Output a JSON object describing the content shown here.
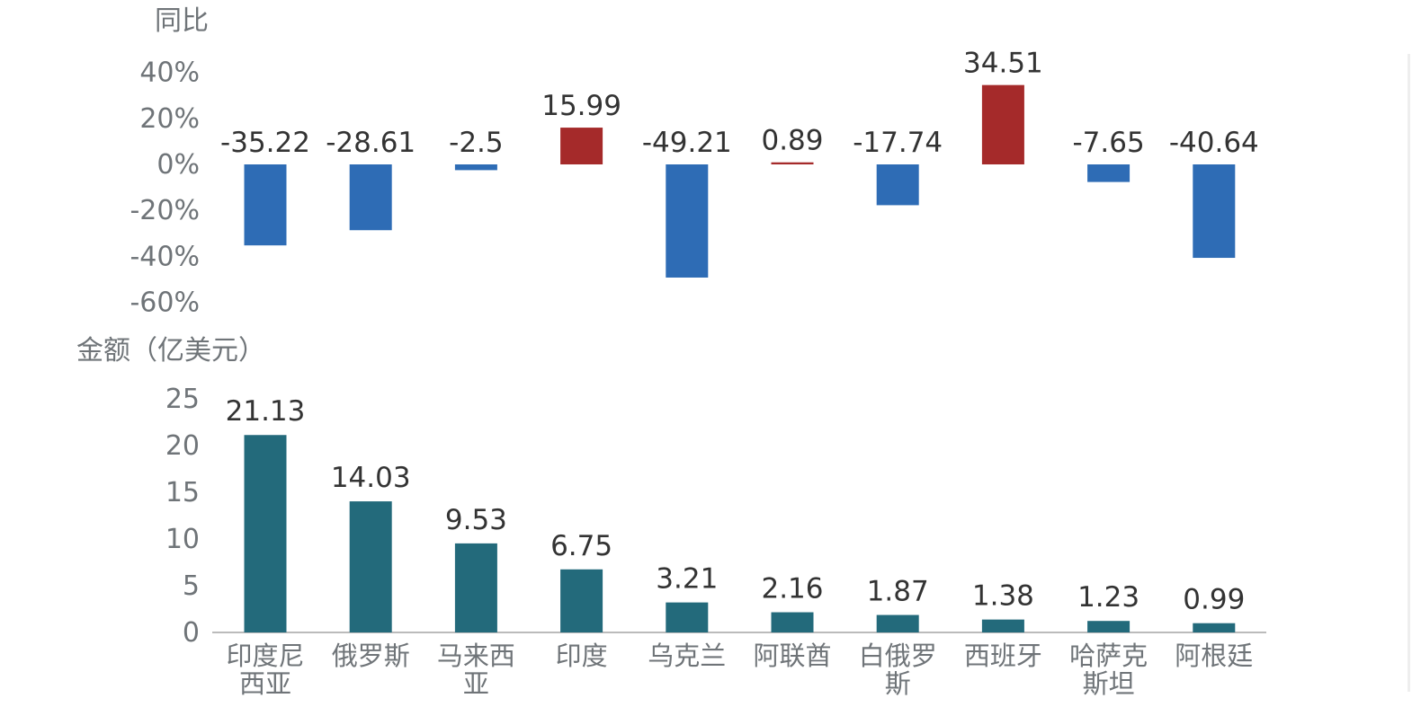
{
  "chart_data": [
    {
      "type": "bar",
      "title": "",
      "ylabel": "同比",
      "ylim": [
        -60,
        40
      ],
      "yticks": [
        "40%",
        "20%",
        "0%",
        "-20%",
        "-40%",
        "-60%"
      ],
      "categories": [
        "印度尼西亚",
        "俄罗斯",
        "马来西亚",
        "印度",
        "乌克兰",
        "阿联酋",
        "白俄罗斯",
        "西班牙",
        "哈萨克斯坦",
        "阿根廷"
      ],
      "values": [
        -35.22,
        -28.61,
        -2.5,
        15.99,
        -49.21,
        0.89,
        -17.74,
        34.51,
        -7.65,
        -40.64
      ],
      "value_labels": [
        "-35.22",
        "-28.61",
        "-2.5",
        "15.99",
        "-49.21",
        "0.89",
        "-17.74",
        "34.51",
        "-7.65",
        "-40.64"
      ],
      "colors": {
        "positive": "#a52a2a",
        "negative": "#2e6cb5"
      }
    },
    {
      "type": "bar",
      "title": "",
      "ylabel": "金额（亿美元）",
      "ylim": [
        0,
        25
      ],
      "yticks": [
        "25",
        "20",
        "15",
        "10",
        "5",
        "0"
      ],
      "categories": [
        "印度尼西亚",
        "俄罗斯",
        "马来西亚",
        "印度",
        "乌克兰",
        "阿联酋",
        "白俄罗斯",
        "西班牙",
        "哈萨克斯坦",
        "阿根廷"
      ],
      "category_lines": [
        [
          "印度尼",
          "西亚"
        ],
        [
          "俄罗斯"
        ],
        [
          "马来西",
          "亚"
        ],
        [
          "印度"
        ],
        [
          "乌克兰"
        ],
        [
          "阿联酋"
        ],
        [
          "白俄罗",
          "斯"
        ],
        [
          "西班牙"
        ],
        [
          "哈萨克",
          "斯坦"
        ],
        [
          "阿根廷"
        ]
      ],
      "values": [
        21.13,
        14.03,
        9.53,
        6.75,
        3.21,
        2.16,
        1.87,
        1.38,
        1.23,
        0.99
      ],
      "value_labels": [
        "21.13",
        "14.03",
        "9.53",
        "6.75",
        "3.21",
        "2.16",
        "1.87",
        "1.38",
        "1.23",
        "0.99"
      ],
      "colors": {
        "bar": "#236a7b"
      }
    }
  ]
}
